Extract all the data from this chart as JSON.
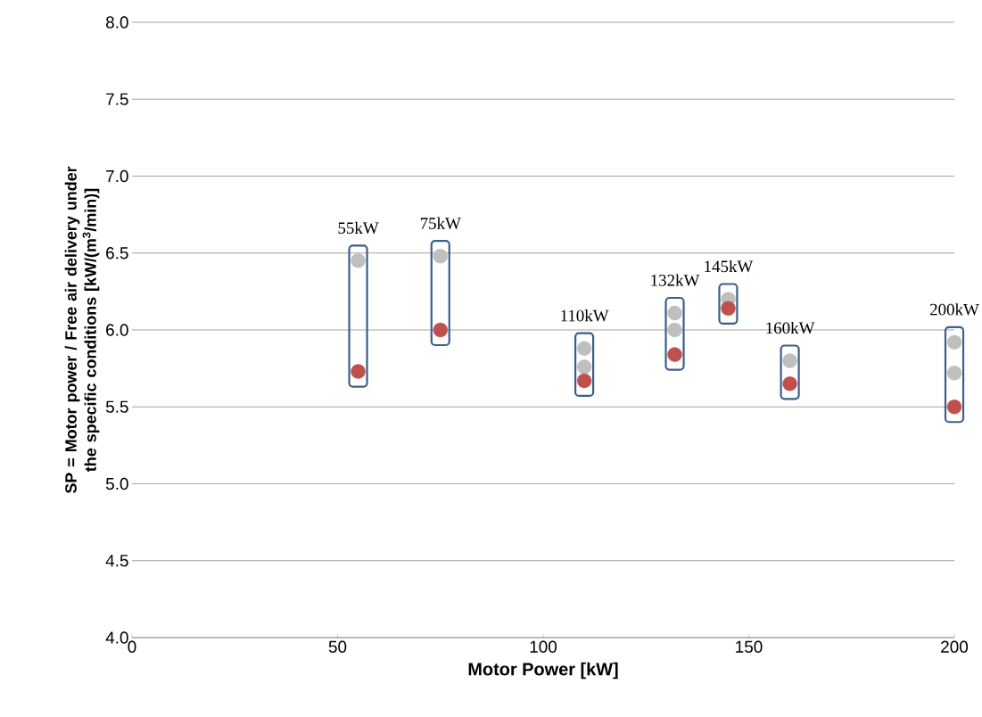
{
  "chart_data": {
    "type": "scatter",
    "xlabel": "Motor Power [kW]",
    "ylabel": "SP = Motor power / Free air delivery under the specific conditions [kW/(m$^{3}$/min)]",
    "xlim": [
      0,
      200
    ],
    "xticks": [
      0,
      50,
      100,
      150,
      200
    ],
    "ylim": [
      4.0,
      8.0
    ],
    "yticks": [
      {
        "value": 4.0,
        "label": "4.0"
      },
      {
        "value": 4.5,
        "label": "4.5"
      },
      {
        "value": 5.0,
        "label": "5.0"
      },
      {
        "value": 5.5,
        "label": "5.5"
      },
      {
        "value": 6.0,
        "label": "6.0"
      },
      {
        "value": 6.5,
        "label": "6.5"
      },
      {
        "value": 7.0,
        "label": "7.0"
      },
      {
        "value": 7.5,
        "label": "7.5"
      },
      {
        "value": 8.0,
        "label": "8.0"
      }
    ],
    "grid": "y",
    "marker": "circle",
    "series": [
      {
        "color": "#bfbfbf",
        "x": [
          55,
          75,
          110,
          110,
          132,
          132,
          145,
          160,
          200,
          200
        ],
        "values": [
          6.45,
          6.48,
          5.88,
          5.76,
          6.11,
          6.0,
          6.2,
          5.8,
          5.92,
          5.72
        ]
      },
      {
        "color": "#c0504d",
        "x": [
          55,
          75,
          110,
          132,
          145,
          160,
          200
        ],
        "values": [
          5.73,
          6.0,
          5.67,
          5.84,
          6.14,
          5.65,
          5.5
        ]
      }
    ],
    "annotations": [
      "55kW",
      "75kW",
      "110kW",
      "132kW",
      "145kW",
      "160kW",
      "200kW"
    ]
  }
}
